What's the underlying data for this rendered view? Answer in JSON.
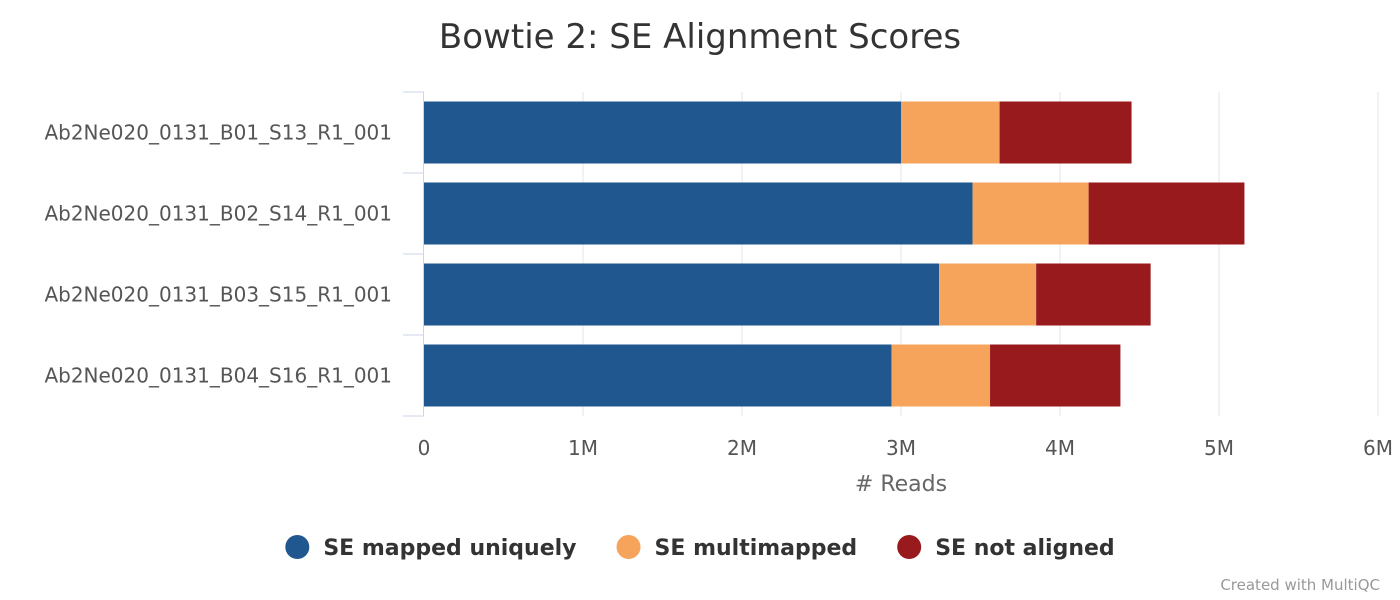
{
  "chart_data": {
    "type": "bar",
    "orientation": "horizontal",
    "stacked": true,
    "title": "Bowtie 2: SE Alignment Scores",
    "xlabel": "# Reads",
    "ylabel": "",
    "xlim": [
      0,
      6000000
    ],
    "x_ticks": [
      {
        "value": 0,
        "label": "0"
      },
      {
        "value": 1000000,
        "label": "1M"
      },
      {
        "value": 2000000,
        "label": "2M"
      },
      {
        "value": 3000000,
        "label": "3M"
      },
      {
        "value": 4000000,
        "label": "4M"
      },
      {
        "value": 5000000,
        "label": "5M"
      },
      {
        "value": 6000000,
        "label": "6M"
      }
    ],
    "grid": true,
    "legend_position": "bottom-center",
    "categories": [
      "Ab2Ne020_0131_B01_S13_R1_001",
      "Ab2Ne020_0131_B02_S14_R1_001",
      "Ab2Ne020_0131_B03_S15_R1_001",
      "Ab2Ne020_0131_B04_S16_R1_001"
    ],
    "series": [
      {
        "name": "SE mapped uniquely",
        "color": "#21578f",
        "values": [
          3000000,
          3450000,
          3240000,
          2940000
        ]
      },
      {
        "name": "SE multimapped",
        "color": "#f6a45c",
        "values": [
          620000,
          730000,
          610000,
          620000
        ]
      },
      {
        "name": "SE not aligned",
        "color": "#981a1d",
        "values": [
          830000,
          980000,
          720000,
          820000
        ]
      }
    ]
  },
  "credit": "Created with MultiQC"
}
